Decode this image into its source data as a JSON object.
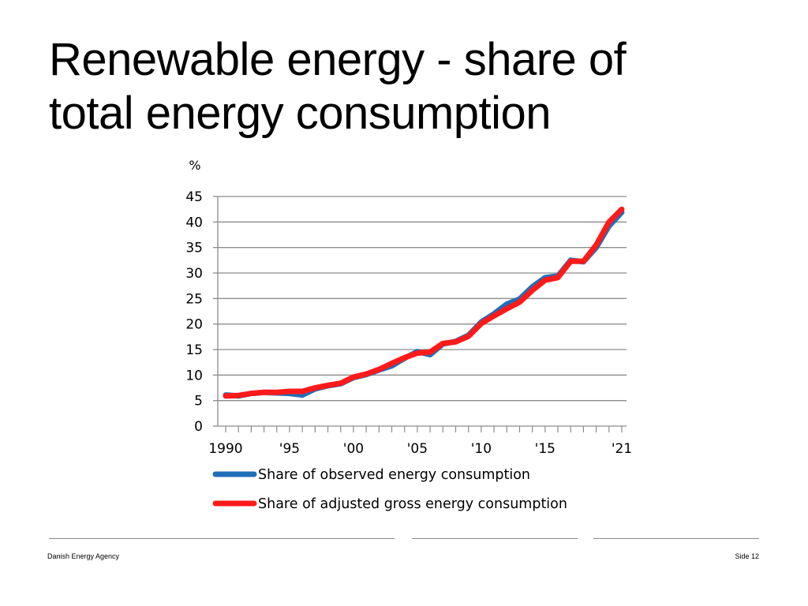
{
  "slide": {
    "title_line1": "Renewable energy - share of",
    "title_line2": "total energy consumption"
  },
  "footer": {
    "organization": "Danish Energy Agency",
    "page": "Side 12"
  },
  "colors": {
    "observed": "#1f6fb8",
    "adjusted": "#ff1a1a",
    "grid": "#8c8c8c",
    "footer_rule": "#888888"
  },
  "chart_data": {
    "type": "line",
    "title": "",
    "ylabel": "%",
    "xlabel": "",
    "ylim": [
      0,
      45
    ],
    "yticks": [
      0,
      5,
      10,
      15,
      20,
      25,
      30,
      35,
      40,
      45
    ],
    "x": [
      1990,
      1991,
      1992,
      1993,
      1994,
      1995,
      1996,
      1997,
      1998,
      1999,
      2000,
      2001,
      2002,
      2003,
      2004,
      2005,
      2006,
      2007,
      2008,
      2009,
      2010,
      2011,
      2012,
      2013,
      2014,
      2015,
      2016,
      2017,
      2018,
      2019,
      2020,
      2021
    ],
    "xtick_labels": [
      {
        "year": 1990,
        "label": "1990"
      },
      {
        "year": 1995,
        "label": "'95"
      },
      {
        "year": 2000,
        "label": "'00"
      },
      {
        "year": 2005,
        "label": "'05"
      },
      {
        "year": 2010,
        "label": "'10"
      },
      {
        "year": 2015,
        "label": "'15"
      },
      {
        "year": 2021,
        "label": "'21"
      }
    ],
    "grid": true,
    "legend_position": "bottom",
    "series": [
      {
        "name": "Share of observed energy consumption",
        "color": "#1f6fb8",
        "values": [
          6.1,
          5.9,
          6.4,
          6.6,
          6.5,
          6.4,
          6.1,
          7.3,
          7.9,
          8.3,
          9.5,
          10.1,
          11.0,
          11.8,
          13.3,
          14.6,
          14.0,
          16.1,
          16.6,
          17.8,
          20.4,
          22.0,
          23.9,
          24.9,
          27.3,
          29.1,
          29.4,
          32.5,
          32.2,
          35.0,
          39.2,
          41.9
        ]
      },
      {
        "name": "Share of adjusted gross energy consumption",
        "color": "#ff1a1a",
        "values": [
          5.9,
          6.0,
          6.4,
          6.6,
          6.6,
          6.8,
          6.8,
          7.5,
          8.0,
          8.4,
          9.6,
          10.2,
          11.1,
          12.3,
          13.4,
          14.3,
          14.5,
          16.2,
          16.5,
          17.6,
          20.1,
          21.6,
          23.0,
          24.3,
          26.6,
          28.6,
          29.1,
          32.3,
          32.3,
          35.5,
          40.0,
          42.5
        ]
      }
    ]
  }
}
